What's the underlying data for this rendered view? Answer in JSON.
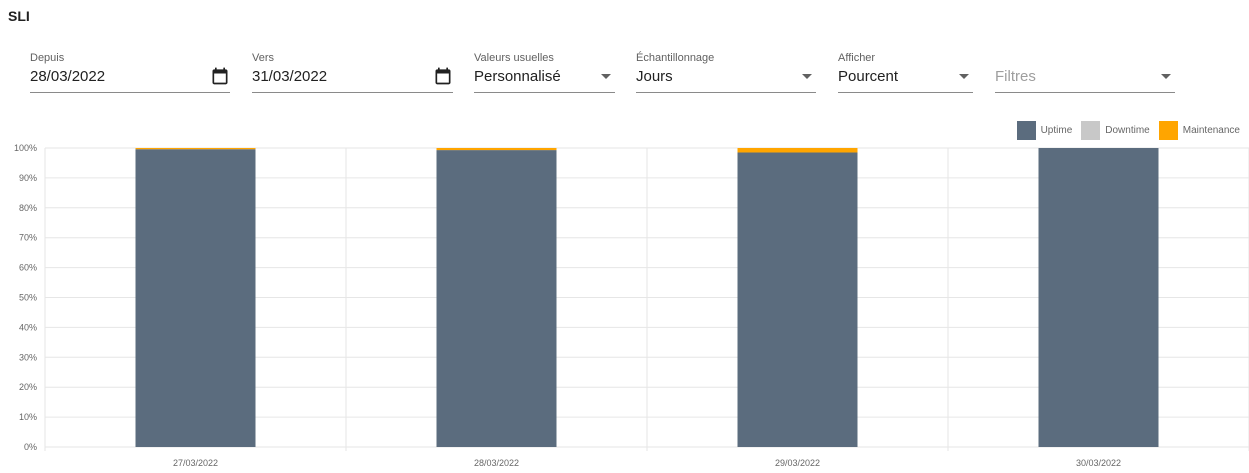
{
  "header": {
    "title": "SLI"
  },
  "filters": {
    "depuis": {
      "label": "Depuis",
      "value": "28/03/2022"
    },
    "vers": {
      "label": "Vers",
      "value": "31/03/2022"
    },
    "valeurs_usuelles": {
      "label": "Valeurs usuelles",
      "value": "Personnalisé"
    },
    "echantillonnage": {
      "label": "Échantillonnage",
      "value": "Jours"
    },
    "afficher": {
      "label": "Afficher",
      "value": "Pourcent"
    },
    "filtres": {
      "placeholder": "Filtres"
    }
  },
  "icons": {
    "date_picker": "calendar-icon",
    "dropdown": "caret-down-icon"
  },
  "chart_data": {
    "type": "bar",
    "stacked": true,
    "categories": [
      "27/03/2022",
      "28/03/2022",
      "29/03/2022",
      "30/03/2022"
    ],
    "series": [
      {
        "name": "Uptime",
        "color": "#5b6c7e",
        "values": [
          99.6,
          99.3,
          98.5,
          100
        ]
      },
      {
        "name": "Downtime",
        "color": "#c8c8c8",
        "values": [
          0,
          0,
          0,
          0
        ]
      },
      {
        "name": "Maintenance",
        "color": "#ffa500",
        "values": [
          0.4,
          0.7,
          1.5,
          0
        ]
      }
    ],
    "ylim": [
      0,
      100
    ],
    "yticks": [
      "0%",
      "10%",
      "20%",
      "30%",
      "40%",
      "50%",
      "60%",
      "70%",
      "80%",
      "90%",
      "100%"
    ],
    "grid": true,
    "legend": "top-right"
  }
}
